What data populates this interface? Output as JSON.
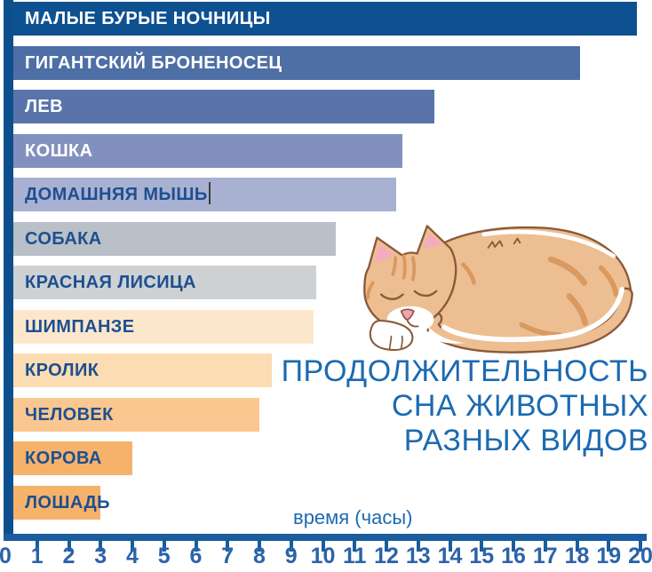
{
  "infographic": {
    "title_lines": [
      "ПРОДОЛЖИТЕЛЬНОСТЬ",
      "СНА ЖИВОТНЫХ",
      "РАЗНЫХ ВИДОВ"
    ],
    "axis_label": "время (часы)"
  },
  "chart_data": {
    "type": "bar",
    "orientation": "horizontal",
    "title": "ПРОДОЛЖИТЕЛЬНОСТЬ СНА ЖИВОТНЫХ РАЗНЫХ ВИДОВ",
    "xlabel": "время (часы)",
    "xlim": [
      0,
      20
    ],
    "x_ticks": [
      0,
      1,
      2,
      3,
      4,
      5,
      6,
      7,
      8,
      9,
      10,
      11,
      12,
      13,
      14,
      15,
      16,
      17,
      18,
      19,
      20
    ],
    "grid": false,
    "categories": [
      "МАЛЫЕ БУРЫЕ НОЧНИЦЫ",
      "ГИГАНТСКИЙ БРОНЕНОСЕЦ",
      "ЛЕВ",
      "КОШКА",
      "ДОМАШНЯЯ МЫШЬ",
      "СОБАКА",
      "КРАСНАЯ ЛИСИЦА",
      "ШИМПАНЗЕ",
      "КРОЛИК",
      "ЧЕЛОВЕК",
      "КОРОВА",
      "ЛОШАДЬ"
    ],
    "values": [
      19.9,
      18.1,
      13.5,
      12.5,
      12.3,
      10.4,
      9.8,
      9.7,
      8.4,
      8.0,
      4.0,
      3.0
    ],
    "bar_colors": [
      "#0e5190",
      "#4e6fa6",
      "#5874aa",
      "#8290bf",
      "#a9b1d2",
      "#b9c0c7",
      "#cdd1d3",
      "#fce7cd",
      "#fcdcb3",
      "#f9c78f",
      "#f6b26a",
      "#f6b26a"
    ],
    "label_text_colors": [
      "#ffffff",
      "#ffffff",
      "#ffffff",
      "#ffffff",
      "#1d4f91",
      "#1d4f91",
      "#1d4f91",
      "#1d4f91",
      "#1d4f91",
      "#1d4f91",
      "#1d4f91",
      "#1d4f91"
    ],
    "text_cursor": {
      "row_index": 4,
      "after_chars": 13
    }
  },
  "colors": {
    "background": "#ffffff",
    "y_axis": "#0d4f8c",
    "x_axis": "#1a5c9e",
    "tick_text": "#2b63a9",
    "title_text": "#1b6ab1"
  },
  "illustration": {
    "name": "sleeping-cat",
    "body": "#edbe92",
    "stripes": "#d9995f",
    "outline": "#8a5a38",
    "ear_inner": "#f5abbe",
    "nose": "#f2a2b6",
    "white": "#ffffff"
  }
}
